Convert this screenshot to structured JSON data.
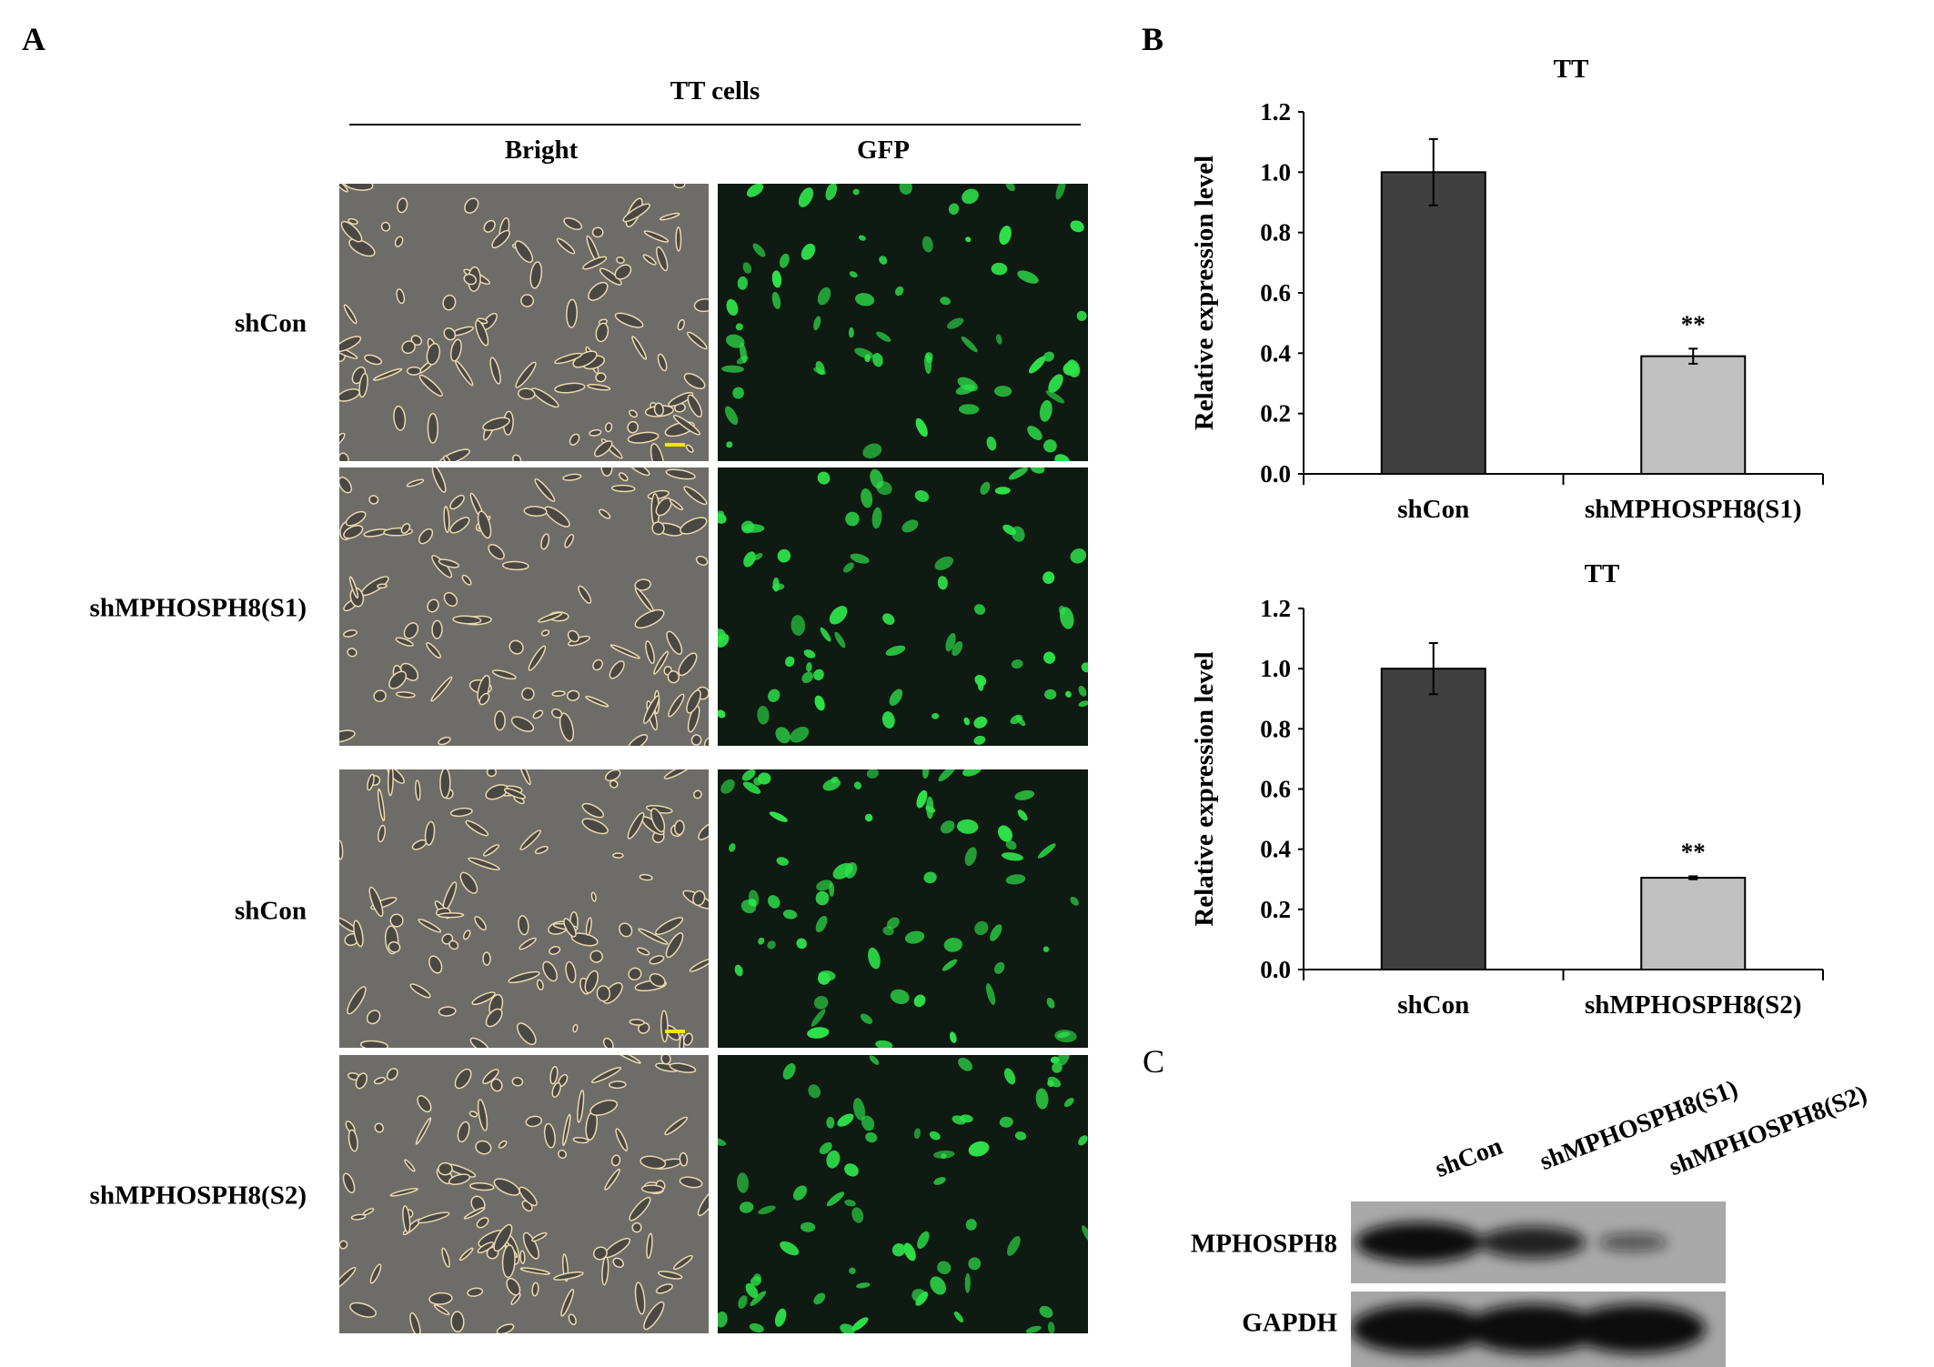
{
  "panel_labels": {
    "a": "A",
    "b": "B",
    "c": "C"
  },
  "panel_a": {
    "group_header": "TT cells",
    "columns": [
      "Bright",
      "GFP"
    ],
    "rows": [
      "shCon",
      "shMPHOSPH8(S1)",
      "shCon",
      "shMPHOSPH8(S2)"
    ],
    "colors": {
      "bright_bg": "#6e6c68",
      "gfp_bg": "#0f1a12",
      "gfp_cell": "#2ee34a",
      "scale_bar": "#f2e600"
    }
  },
  "chart_data": [
    {
      "type": "bar",
      "title": "TT",
      "xlabel": "",
      "ylabel": "Relative expression level",
      "categories": [
        "shCon",
        "shMPHOSPH8(S1)"
      ],
      "values": [
        1.0,
        0.39
      ],
      "errors": [
        0.11,
        0.025
      ],
      "annotations": [
        "",
        "**"
      ],
      "ylim": [
        0,
        1.2
      ],
      "yticks": [
        "0.0",
        "0.2",
        "0.4",
        "0.6",
        "0.8",
        "1.0",
        "1.2"
      ],
      "bar_colors": [
        "#404040",
        "#c0c0c0"
      ],
      "grid": false
    },
    {
      "type": "bar",
      "title": "TT",
      "xlabel": "",
      "ylabel": "Relative expression level",
      "categories": [
        "shCon",
        "shMPHOSPH8(S2)"
      ],
      "values": [
        1.0,
        0.305
      ],
      "errors": [
        0.085,
        0.005
      ],
      "annotations": [
        "",
        "**"
      ],
      "ylim": [
        0,
        1.2
      ],
      "yticks": [
        "0.0",
        "0.2",
        "0.4",
        "0.6",
        "0.8",
        "1.0",
        "1.2"
      ],
      "bar_colors": [
        "#404040",
        "#c0c0c0"
      ],
      "grid": false
    }
  ],
  "panel_c": {
    "lanes": [
      "shCon",
      "shMPHOSPH8(S1)",
      "shMPHOSPH8(S2)"
    ],
    "bands": [
      "MPHOSPH8",
      "GAPDH"
    ],
    "mphosph8_relative_intensity": [
      1.0,
      0.8,
      0.3
    ],
    "gapdh_relative_intensity": [
      1.0,
      1.0,
      1.0
    ]
  }
}
